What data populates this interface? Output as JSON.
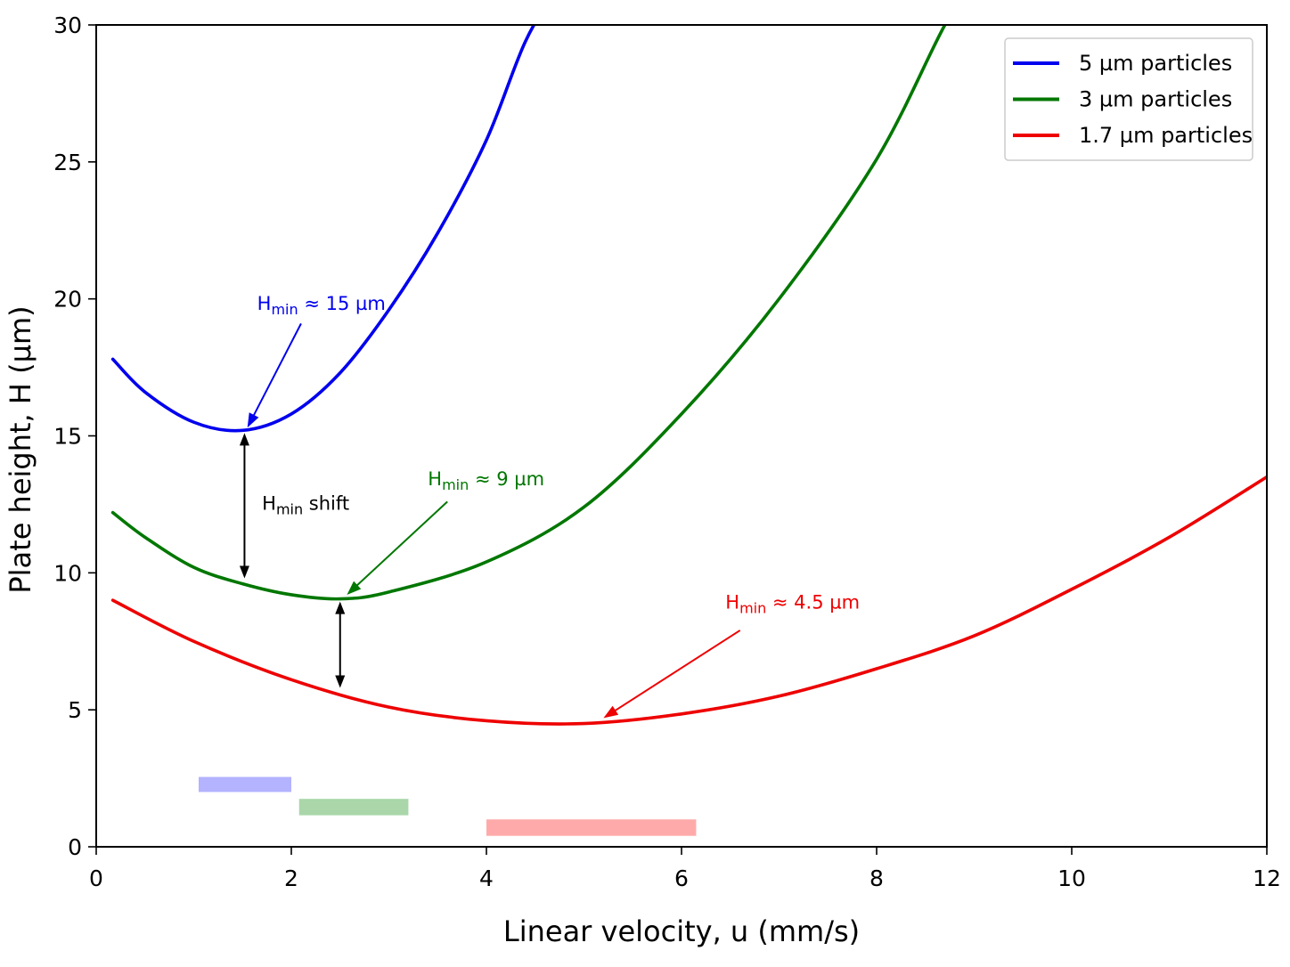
{
  "chart_data": {
    "type": "line",
    "xlabel": "Linear velocity, u (mm/s)",
    "ylabel": "Plate height, H (µm)",
    "xlim": [
      0,
      12
    ],
    "ylim": [
      0,
      30
    ],
    "xticks": [
      0,
      2,
      4,
      6,
      8,
      10,
      12
    ],
    "yticks": [
      0,
      5,
      10,
      15,
      20,
      25,
      30
    ],
    "xtick_labels": [
      "0",
      "2",
      "4",
      "6",
      "8",
      "10",
      "12"
    ],
    "ytick_labels": [
      "0",
      "5",
      "10",
      "15",
      "20",
      "25",
      "30"
    ],
    "grid": false,
    "legend_position": "top-right",
    "series": [
      {
        "name": "5 µm particles",
        "color": "#0000ee",
        "points": [
          [
            0.17,
            17.8
          ],
          [
            0.5,
            16.6
          ],
          [
            1.0,
            15.5
          ],
          [
            1.5,
            15.2
          ],
          [
            2.0,
            15.8
          ],
          [
            2.5,
            17.3
          ],
          [
            3.0,
            19.6
          ],
          [
            3.5,
            22.4
          ],
          [
            4.0,
            25.8
          ],
          [
            4.4,
            29.4
          ],
          [
            4.75,
            31.5
          ]
        ]
      },
      {
        "name": "3 µm particles",
        "color": "#007700",
        "points": [
          [
            0.17,
            12.2
          ],
          [
            0.5,
            11.3
          ],
          [
            1.0,
            10.2
          ],
          [
            1.5,
            9.6
          ],
          [
            2.0,
            9.2
          ],
          [
            2.5,
            9.05
          ],
          [
            3.0,
            9.3
          ],
          [
            4.0,
            10.4
          ],
          [
            5.0,
            12.4
          ],
          [
            6.0,
            15.8
          ],
          [
            7.0,
            20.0
          ],
          [
            8.0,
            25.1
          ],
          [
            8.7,
            30.0
          ],
          [
            9.0,
            31.5
          ]
        ]
      },
      {
        "name": "1.7 µm particles",
        "color": "#ee0000",
        "points": [
          [
            0.17,
            9.0
          ],
          [
            1.0,
            7.5
          ],
          [
            2.0,
            6.1
          ],
          [
            3.0,
            5.1
          ],
          [
            4.0,
            4.6
          ],
          [
            5.0,
            4.5
          ],
          [
            6.0,
            4.85
          ],
          [
            7.0,
            5.5
          ],
          [
            8.0,
            6.5
          ],
          [
            9.0,
            7.7
          ],
          [
            10.0,
            9.4
          ],
          [
            11.0,
            11.3
          ],
          [
            12.0,
            13.5
          ]
        ]
      }
    ],
    "legend": [
      {
        "label": "5 µm particles",
        "color": "#0000ee"
      },
      {
        "label": "3 µm particles",
        "color": "#007700"
      },
      {
        "label": "1.7 µm particles",
        "color": "#ee0000"
      }
    ],
    "annotations": [
      {
        "main": "H",
        "sub": "min",
        "rest": " ≈ 15 µm",
        "color": "#0000ee",
        "text_xy": [
          1.65,
          19.6
        ],
        "arrow_from": [
          2.1,
          19.1
        ],
        "arrow_to": [
          1.55,
          15.3
        ]
      },
      {
        "main": "H",
        "sub": "min",
        "rest": " ≈ 9 µm",
        "color": "#007700",
        "text_xy": [
          3.4,
          13.2
        ],
        "arrow_from": [
          3.6,
          12.6
        ],
        "arrow_to": [
          2.57,
          9.2
        ]
      },
      {
        "main": "H",
        "sub": "min",
        "rest": " ≈ 4.5 µm",
        "color": "#ee0000",
        "text_xy": [
          6.45,
          8.7
        ],
        "arrow_from": [
          6.6,
          7.9
        ],
        "arrow_to": [
          5.2,
          4.7
        ]
      },
      {
        "main": "H",
        "sub": "min",
        "rest": " shift",
        "color": "#000000",
        "text_xy": [
          1.7,
          12.3
        ]
      }
    ],
    "shift_arrows": [
      {
        "x": 1.52,
        "y_from": 15.1,
        "y_to": 9.8
      },
      {
        "x": 2.5,
        "y_from": 8.95,
        "y_to": 5.8
      }
    ],
    "optimal_ranges": [
      {
        "x_start": 1.05,
        "x_end": 2.0,
        "y_bottom": 2.0,
        "y_top": 2.55,
        "color": "#b3b3ff"
      },
      {
        "x_start": 2.08,
        "x_end": 3.2,
        "y_bottom": 1.15,
        "y_top": 1.75,
        "color": "#aad6aa"
      },
      {
        "x_start": 4.0,
        "x_end": 6.15,
        "y_bottom": 0.4,
        "y_top": 1.0,
        "color": "#ffaaaa"
      }
    ]
  }
}
